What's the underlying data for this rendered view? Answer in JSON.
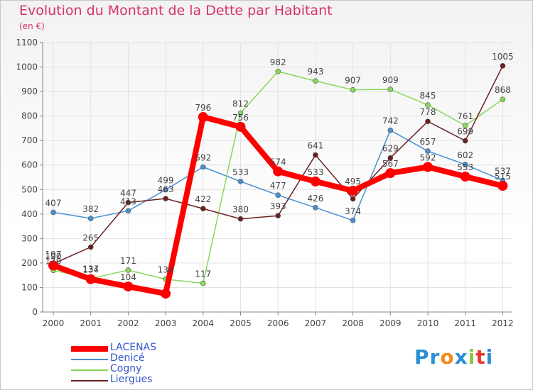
{
  "header": {
    "title": "Evolution du Montant de la Dette par Habitant",
    "unit": "(en €)"
  },
  "logo": {
    "letters": [
      "P",
      "r",
      "o",
      "x",
      "i",
      "t",
      "i"
    ],
    "text": "Proxiti"
  },
  "chart_data": {
    "type": "line",
    "x": [
      2000,
      2001,
      2002,
      2003,
      2004,
      2005,
      2006,
      2007,
      2008,
      2009,
      2010,
      2011,
      2012
    ],
    "ylim": [
      0,
      1100
    ],
    "yticks": [
      0,
      100,
      200,
      300,
      400,
      500,
      600,
      700,
      800,
      900,
      1000,
      1100
    ],
    "grid": true,
    "legend_position": "bottom-left",
    "series": [
      {
        "name": "LACENAS",
        "color": "#ff0000",
        "values": [
          190,
          134,
          104,
          75,
          796,
          756,
          574,
          533,
          495,
          567,
          592,
          553,
          515
        ],
        "labels": [
          "190",
          "134",
          "104",
          "",
          "796",
          "756",
          "574",
          "533",
          "495",
          "567",
          "592",
          "553",
          "515"
        ]
      },
      {
        "name": "Denicé",
        "color": "#4a8fd0",
        "values": [
          407,
          382,
          413,
          499,
          592,
          533,
          477,
          426,
          374,
          742,
          657,
          602,
          537
        ],
        "labels": [
          "407",
          "382",
          "413",
          "499",
          "592",
          "533",
          "477",
          "426",
          "374",
          "742",
          "657",
          "602",
          "537"
        ]
      },
      {
        "name": "Cogny",
        "color": "#88d85a",
        "values": [
          170,
          137,
          171,
          134,
          117,
          812,
          982,
          943,
          907,
          909,
          845,
          761,
          868
        ],
        "labels": [
          "170",
          "137",
          "171",
          "134",
          "117",
          "812",
          "982",
          "943",
          "907",
          "909",
          "845",
          "761",
          "868"
        ]
      },
      {
        "name": "Liergues",
        "color": "#6b1f1f",
        "values": [
          197,
          265,
          447,
          463,
          422,
          380,
          393,
          641,
          462,
          629,
          778,
          699,
          1005
        ],
        "labels": [
          "197",
          "265",
          "447",
          "463",
          "422",
          "380",
          "393",
          "641",
          "",
          "629",
          "778",
          "699",
          "1005"
        ]
      }
    ]
  }
}
